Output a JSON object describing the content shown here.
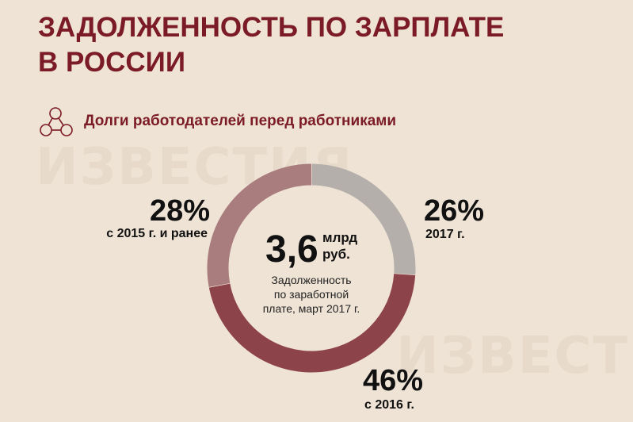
{
  "chart_data": {
    "type": "donut",
    "title": [
      "ЗАДОЛЖЕННОСТЬ ПО ЗАРПЛАТЕ",
      "В РОССИИ"
    ],
    "subtitle": "Долги работодателей перед работниками",
    "watermark": "ИЗВЕСТИЯ",
    "center_value": "3,6",
    "center_unit": [
      "млрд",
      "руб."
    ],
    "center_caption": [
      "Задолженность",
      "по заработной",
      "плате, март 2017 г."
    ],
    "categories": [
      "2017 г.",
      "с 2016 г.",
      "с 2015 г. и ранее"
    ],
    "values": [
      26,
      46,
      28
    ],
    "value_labels": [
      "26%",
      "46%",
      "28%"
    ],
    "colors": [
      "#b4afab",
      "#8d434a",
      "#a97c7e"
    ]
  }
}
